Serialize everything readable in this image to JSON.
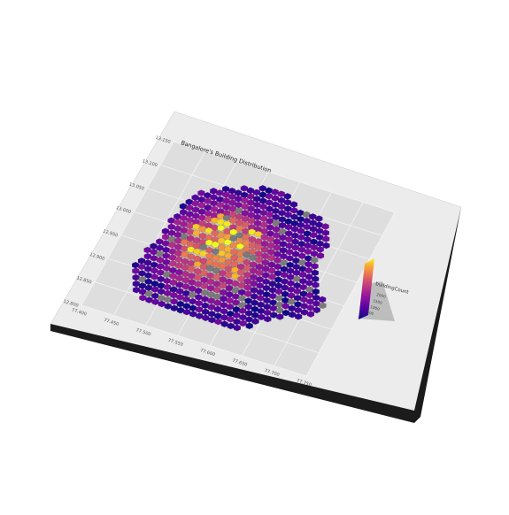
{
  "chart_data": {
    "type": "heatmap",
    "subtype": "3d-hexbin-map",
    "title": "Bangalore's Building Distribution",
    "x_ticks": [
      "77.400",
      "77.450",
      "77.500",
      "77.550",
      "77.600",
      "77.650",
      "77.700",
      "77.750"
    ],
    "y_ticks": [
      "12.800",
      "12.850",
      "12.900",
      "12.950",
      "13.000",
      "13.050",
      "13.100",
      "13.150"
    ],
    "legend": {
      "title": "buildingCount",
      "ticks": [
        "2000",
        "1500",
        "1000",
        "500"
      ],
      "colors": [
        "#0d0887",
        "#5b02a3",
        "#9a179b",
        "#cb4678",
        "#eb7852",
        "#fbb32f",
        "#f0f921"
      ],
      "placement": "right"
    },
    "grid": true,
    "bins_shown": "hexagonal bins; color encodes building count (approx. 0–2000)",
    "colors": {
      "panel": "#dedede",
      "card": "#ececec",
      "card_edge": "#1b1b1b",
      "missing": "#7a7a7a"
    }
  }
}
